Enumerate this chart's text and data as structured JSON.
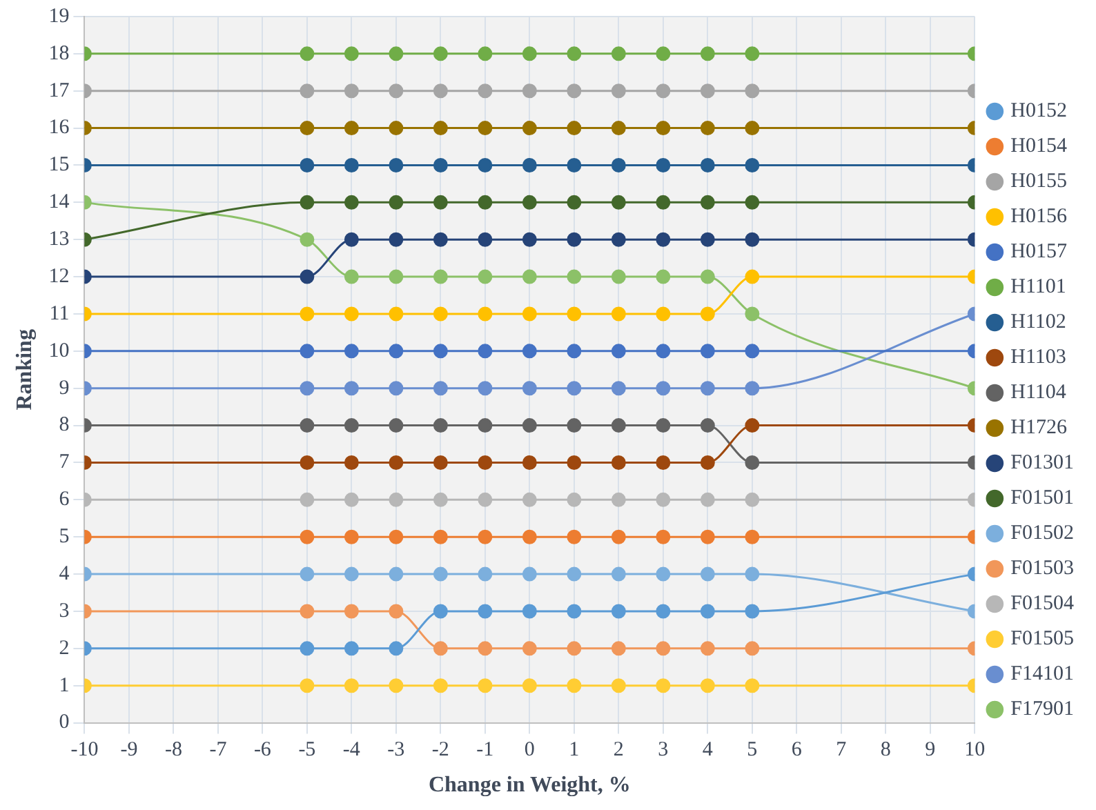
{
  "chart_data": {
    "type": "line",
    "xlabel": "Change in Weight, %",
    "ylabel": "Ranking",
    "x": [
      -10,
      -5,
      -4,
      -3,
      -2,
      -1,
      0,
      1,
      2,
      3,
      4,
      5,
      10
    ],
    "xlim": [
      -10,
      10
    ],
    "xticks": [
      -10,
      -9,
      -8,
      -7,
      -6,
      -5,
      -4,
      -3,
      -2,
      -1,
      0,
      1,
      2,
      3,
      4,
      5,
      6,
      7,
      8,
      9,
      10
    ],
    "ylim": [
      0,
      19
    ],
    "yticks": [
      0,
      1,
      2,
      3,
      4,
      5,
      6,
      7,
      8,
      9,
      10,
      11,
      12,
      13,
      14,
      15,
      16,
      17,
      18,
      19
    ],
    "grid": true,
    "legend": "right",
    "marker": "circle",
    "line_style": "solid",
    "series": [
      {
        "name": "H0152",
        "color": "#5b9bd5",
        "values": [
          2,
          2,
          2,
          2,
          3,
          3,
          3,
          3,
          3,
          3,
          3,
          3,
          4
        ]
      },
      {
        "name": "H0154",
        "color": "#ed7d31",
        "values": [
          5,
          5,
          5,
          5,
          5,
          5,
          5,
          5,
          5,
          5,
          5,
          5,
          5
        ]
      },
      {
        "name": "H0155",
        "color": "#a5a5a5",
        "values": [
          17,
          17,
          17,
          17,
          17,
          17,
          17,
          17,
          17,
          17,
          17,
          17,
          17
        ]
      },
      {
        "name": "H0156",
        "color": "#ffc000",
        "values": [
          11,
          11,
          11,
          11,
          11,
          11,
          11,
          11,
          11,
          11,
          11,
          12,
          12
        ]
      },
      {
        "name": "H0157",
        "color": "#4472c4",
        "values": [
          10,
          10,
          10,
          10,
          10,
          10,
          10,
          10,
          10,
          10,
          10,
          10,
          10
        ]
      },
      {
        "name": "H1101",
        "color": "#70ad47",
        "values": [
          18,
          18,
          18,
          18,
          18,
          18,
          18,
          18,
          18,
          18,
          18,
          18,
          18
        ]
      },
      {
        "name": "H1102",
        "color": "#255e91",
        "values": [
          15,
          15,
          15,
          15,
          15,
          15,
          15,
          15,
          15,
          15,
          15,
          15,
          15
        ]
      },
      {
        "name": "H1103",
        "color": "#9e480e",
        "values": [
          7,
          7,
          7,
          7,
          7,
          7,
          7,
          7,
          7,
          7,
          7,
          8,
          8
        ]
      },
      {
        "name": "H1104",
        "color": "#636363",
        "values": [
          8,
          8,
          8,
          8,
          8,
          8,
          8,
          8,
          8,
          8,
          8,
          7,
          7
        ]
      },
      {
        "name": "H1726",
        "color": "#997300",
        "values": [
          16,
          16,
          16,
          16,
          16,
          16,
          16,
          16,
          16,
          16,
          16,
          16,
          16
        ]
      },
      {
        "name": "F01301",
        "color": "#264478",
        "values": [
          12,
          12,
          13,
          13,
          13,
          13,
          13,
          13,
          13,
          13,
          13,
          13,
          13
        ]
      },
      {
        "name": "F01501",
        "color": "#43682b",
        "values": [
          13,
          14,
          14,
          14,
          14,
          14,
          14,
          14,
          14,
          14,
          14,
          14,
          14
        ]
      },
      {
        "name": "F01502",
        "color": "#7cafdd",
        "values": [
          4,
          4,
          4,
          4,
          4,
          4,
          4,
          4,
          4,
          4,
          4,
          4,
          3
        ]
      },
      {
        "name": "F01503",
        "color": "#f1975a",
        "values": [
          3,
          3,
          3,
          3,
          2,
          2,
          2,
          2,
          2,
          2,
          2,
          2,
          2
        ]
      },
      {
        "name": "F01504",
        "color": "#b7b7b7",
        "values": [
          6,
          6,
          6,
          6,
          6,
          6,
          6,
          6,
          6,
          6,
          6,
          6,
          6
        ]
      },
      {
        "name": "F01505",
        "color": "#ffcd33",
        "values": [
          1,
          1,
          1,
          1,
          1,
          1,
          1,
          1,
          1,
          1,
          1,
          1,
          1
        ]
      },
      {
        "name": "F14101",
        "color": "#698ed0",
        "values": [
          9,
          9,
          9,
          9,
          9,
          9,
          9,
          9,
          9,
          9,
          9,
          9,
          11
        ]
      },
      {
        "name": "F17901",
        "color": "#8cc168",
        "values": [
          14,
          13,
          12,
          12,
          12,
          12,
          12,
          12,
          12,
          12,
          12,
          11,
          9
        ]
      }
    ]
  }
}
